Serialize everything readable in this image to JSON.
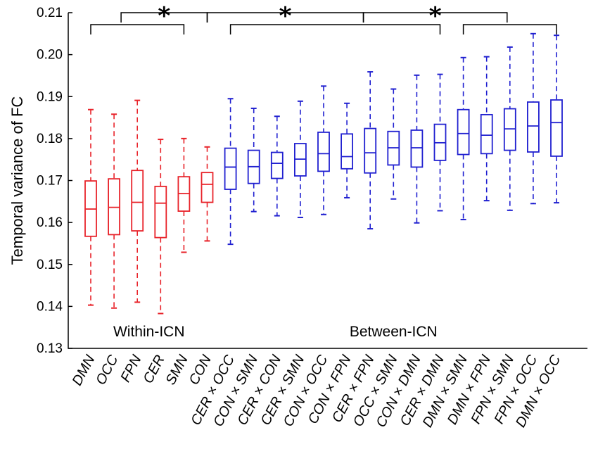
{
  "chart_data": {
    "type": "box",
    "ylabel": "Temporal variance of FC",
    "xlabel": "",
    "ylim": [
      0.13,
      0.21
    ],
    "yticks": [
      "0.13",
      "0.14",
      "0.15",
      "0.16",
      "0.17",
      "0.18",
      "0.19",
      "0.20",
      "0.21"
    ],
    "colors": {
      "within": "#e8232a",
      "between": "#2020d0",
      "axis": "#000000"
    },
    "groups": [
      {
        "label": "Within-ICN",
        "color": "within"
      },
      {
        "label": "Between-ICN",
        "color": "between"
      }
    ],
    "significance_marker": "*",
    "boxes": [
      {
        "label": "DMN",
        "group": "within",
        "min": 0.1403,
        "q1": 0.1567,
        "median": 0.1632,
        "q3": 0.1699,
        "max": 0.1869
      },
      {
        "label": "OCC",
        "group": "within",
        "min": 0.1396,
        "q1": 0.1571,
        "median": 0.1636,
        "q3": 0.1704,
        "max": 0.1858
      },
      {
        "label": "FPN",
        "group": "within",
        "min": 0.141,
        "q1": 0.158,
        "median": 0.1648,
        "q3": 0.1724,
        "max": 0.1891
      },
      {
        "label": "CER",
        "group": "within",
        "min": 0.1383,
        "q1": 0.1564,
        "median": 0.1646,
        "q3": 0.1686,
        "max": 0.1798
      },
      {
        "label": "SMN",
        "group": "within",
        "min": 0.1529,
        "q1": 0.1627,
        "median": 0.1669,
        "q3": 0.1709,
        "max": 0.18
      },
      {
        "label": "CON",
        "group": "within",
        "min": 0.1556,
        "q1": 0.1648,
        "median": 0.1691,
        "q3": 0.1719,
        "max": 0.178
      },
      {
        "label": "CER × OCC",
        "group": "between",
        "min": 0.1548,
        "q1": 0.1679,
        "median": 0.1732,
        "q3": 0.1777,
        "max": 0.1895
      },
      {
        "label": "CON × SMN",
        "group": "between",
        "min": 0.1626,
        "q1": 0.1693,
        "median": 0.1733,
        "q3": 0.1772,
        "max": 0.1872
      },
      {
        "label": "CER × CON",
        "group": "between",
        "min": 0.1616,
        "q1": 0.1705,
        "median": 0.1741,
        "q3": 0.1767,
        "max": 0.1853
      },
      {
        "label": "CER × SMN",
        "group": "between",
        "min": 0.1612,
        "q1": 0.1711,
        "median": 0.1751,
        "q3": 0.1788,
        "max": 0.1889
      },
      {
        "label": "CON × OCC",
        "group": "between",
        "min": 0.1619,
        "q1": 0.1722,
        "median": 0.1764,
        "q3": 0.1815,
        "max": 0.1925
      },
      {
        "label": "CON × FPN",
        "group": "between",
        "min": 0.1659,
        "q1": 0.1728,
        "median": 0.1757,
        "q3": 0.1811,
        "max": 0.1884
      },
      {
        "label": "CER × FPN",
        "group": "between",
        "min": 0.1585,
        "q1": 0.1718,
        "median": 0.1766,
        "q3": 0.1824,
        "max": 0.1959
      },
      {
        "label": "OCC × SMN",
        "group": "between",
        "min": 0.1656,
        "q1": 0.1737,
        "median": 0.1778,
        "q3": 0.1817,
        "max": 0.1918
      },
      {
        "label": "CON × DMN",
        "group": "between",
        "min": 0.1599,
        "q1": 0.1732,
        "median": 0.1778,
        "q3": 0.182,
        "max": 0.1951
      },
      {
        "label": "CER × DMN",
        "group": "between",
        "min": 0.1628,
        "q1": 0.1748,
        "median": 0.179,
        "q3": 0.1834,
        "max": 0.1953
      },
      {
        "label": "DMN × SMN",
        "group": "between",
        "min": 0.1607,
        "q1": 0.1762,
        "median": 0.1812,
        "q3": 0.1869,
        "max": 0.1993
      },
      {
        "label": "DMN × FPN",
        "group": "between",
        "min": 0.1652,
        "q1": 0.1764,
        "median": 0.1808,
        "q3": 0.1857,
        "max": 0.1995
      },
      {
        "label": "FPN × SMN",
        "group": "between",
        "min": 0.1629,
        "q1": 0.1772,
        "median": 0.1823,
        "q3": 0.1871,
        "max": 0.2018
      },
      {
        "label": "FPN × OCC",
        "group": "between",
        "min": 0.1645,
        "q1": 0.1768,
        "median": 0.183,
        "q3": 0.1887,
        "max": 0.205
      },
      {
        "label": "DMN × OCC",
        "group": "between",
        "min": 0.1647,
        "q1": 0.1758,
        "median": 0.1838,
        "q3": 0.1892,
        "max": 0.2046
      }
    ],
    "brackets": [
      {
        "from": "DMN",
        "to": "SMN",
        "star": false
      },
      {
        "from": "CER × OCC",
        "to": "CER × DMN",
        "star": false
      },
      {
        "from": "DMN × SMN",
        "to": "DMN × OCC",
        "star": false
      },
      {
        "from": "OCC",
        "to": "CON",
        "star": true,
        "link": "within-mid"
      },
      {
        "from": "CON",
        "to": "CON × OCC",
        "star": true,
        "link": "between-mid"
      },
      {
        "from": "CON × FPN",
        "to": "DMN × FPN",
        "star": true,
        "link": "between-right"
      }
    ]
  }
}
